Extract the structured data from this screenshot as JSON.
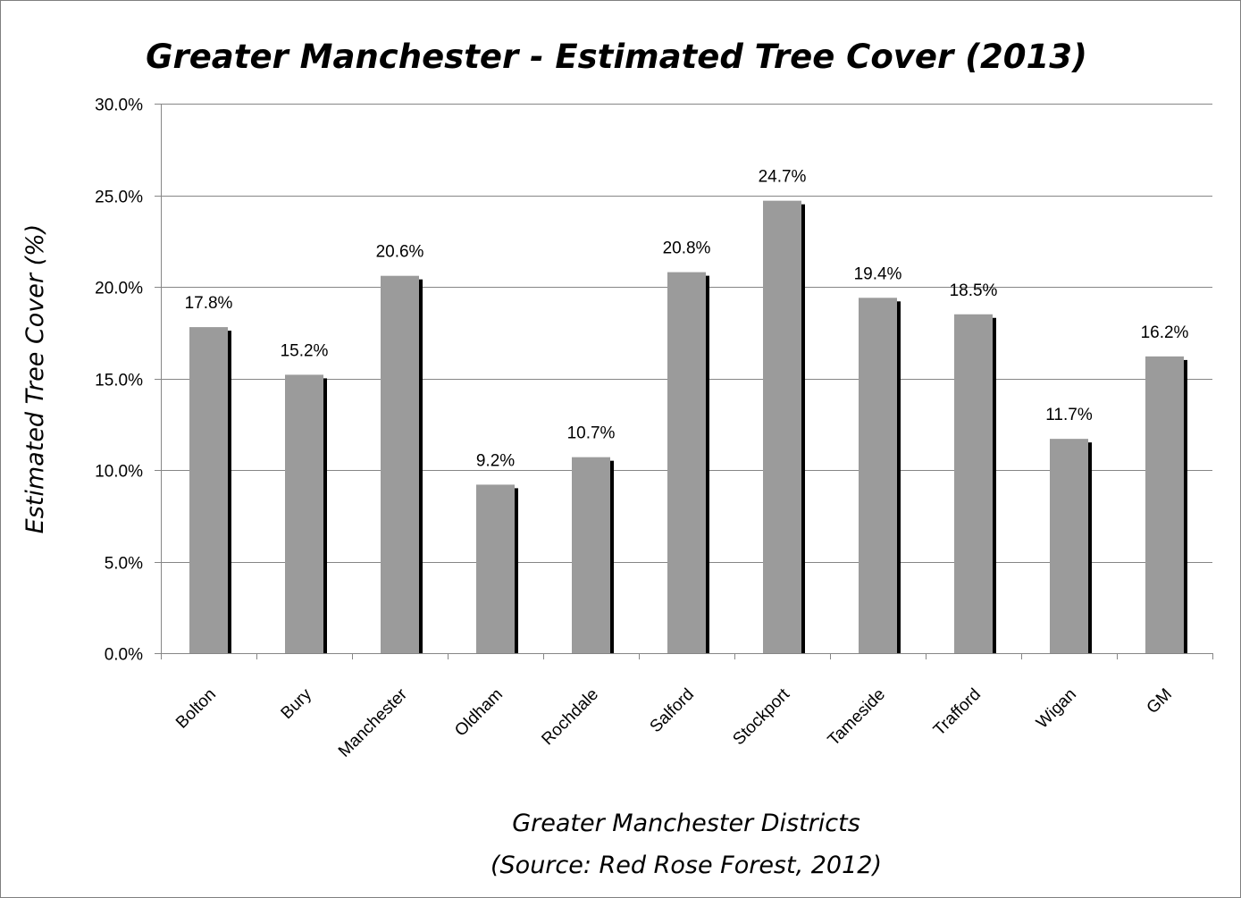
{
  "chart_data": {
    "type": "bar",
    "title": "Greater Manchester - Estimated Tree Cover (2013)",
    "ylabel": "Estimated Tree Cover (%)",
    "xlabel": "Greater Manchester Districts",
    "xlabel_sub": "(Source: Red Rose Forest, 2012)",
    "categories": [
      "Bolton",
      "Bury",
      "Manchester",
      "Oldham",
      "Rochdale",
      "Salford",
      "Stockport",
      "Tameside",
      "Trafford",
      "Wigan",
      "GM"
    ],
    "values": [
      17.8,
      15.2,
      20.6,
      9.2,
      10.7,
      20.8,
      24.7,
      19.4,
      18.5,
      11.7,
      16.2
    ],
    "data_labels": [
      "17.8%",
      "15.2%",
      "20.6%",
      "9.2%",
      "10.7%",
      "20.8%",
      "24.7%",
      "19.4%",
      "18.5%",
      "11.7%",
      "16.2%"
    ],
    "ylim": [
      0,
      30
    ],
    "yticks": [
      0,
      5,
      10,
      15,
      20,
      25,
      30
    ],
    "ytick_labels": [
      "0.0%",
      "5.0%",
      "10.0%",
      "15.0%",
      "20.0%",
      "25.0%",
      "30.0%"
    ],
    "grid": true,
    "legend": "none",
    "colors": {
      "bar": "#9b9b9b",
      "shadow": "#000000",
      "grid": "#868686",
      "axis": "#868686"
    }
  }
}
